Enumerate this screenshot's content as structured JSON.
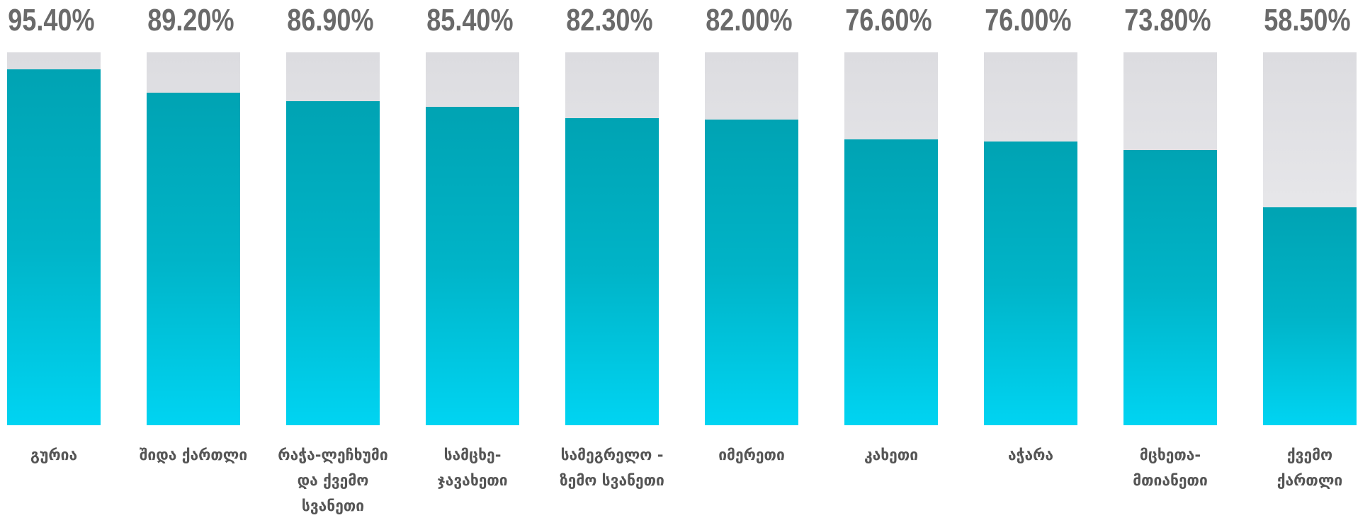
{
  "chart_data": {
    "type": "bar",
    "categories": [
      "გურია",
      "შიდა ქართლი",
      "რაჭა-ლეჩხუმი და ქვემო სვანეთი",
      "სამცხე-ჯავახეთი",
      "სამეგრელო - ზემო სვანეთი",
      "იმერეთი",
      "კახეთი",
      "აჭარა",
      "მცხეთა-მთიანეთი",
      "ქვემო ქართლი"
    ],
    "values": [
      95.4,
      89.2,
      86.9,
      85.4,
      82.3,
      82.0,
      76.6,
      76.0,
      73.8,
      58.5
    ],
    "value_labels": [
      "95.40%",
      "89.20%",
      "86.90%",
      "85.40%",
      "82.30%",
      "82.00%",
      "76.60%",
      "76.00%",
      "73.80%",
      "58.50%"
    ],
    "color": "#00b4c8",
    "ylim": [
      0,
      100
    ]
  }
}
